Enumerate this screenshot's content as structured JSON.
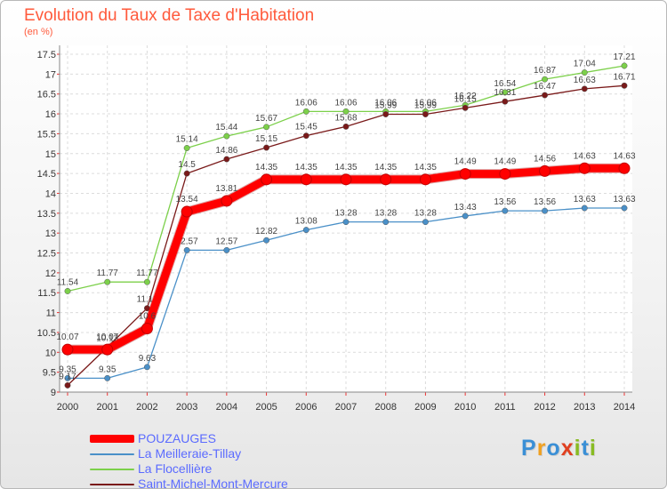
{
  "title": "Evolution du Taux de Taxe d'Habitation",
  "unit": "(en %)",
  "logo": {
    "text": "Proxiti",
    "colors": [
      "#3a8fd6",
      "#f0a020",
      "#e04020",
      "#88bb22"
    ]
  },
  "chart_data": {
    "type": "line",
    "title": "Evolution du Taux de Taxe d'Habitation",
    "ylabel": "(en %)",
    "xlabel": "",
    "x": [
      2000,
      2001,
      2002,
      2003,
      2004,
      2005,
      2006,
      2007,
      2008,
      2009,
      2010,
      2011,
      2012,
      2013,
      2014
    ],
    "ylim": [
      9,
      17.5
    ],
    "yticks": [
      "9",
      "9.5",
      "10",
      "10.5",
      "11",
      "11.5",
      "12",
      "12.5",
      "13",
      "13.5",
      "14",
      "14.5",
      "15",
      "15.5",
      "16",
      "16.5",
      "17",
      "17.5"
    ],
    "grid": true,
    "legend": "bottom-left",
    "series": [
      {
        "name": "La Meilleraie-Tillay",
        "color": "#4a90c8",
        "values": [
          9.35,
          9.35,
          9.63,
          12.57,
          12.57,
          12.82,
          13.08,
          13.28,
          13.28,
          13.28,
          13.43,
          13.56,
          13.56,
          13.63,
          13.63
        ],
        "labels": [
          "9.35",
          "9.35",
          "9.63",
          "12.57",
          "12.57",
          "12.82",
          "13.08",
          "13.28",
          "13.28",
          "13.28",
          "13.43",
          "13.56",
          "13.56",
          "13.63",
          "13.63"
        ]
      },
      {
        "name": "La Flocellière",
        "color": "#7cd04a",
        "values": [
          11.54,
          11.77,
          11.77,
          15.14,
          15.44,
          15.67,
          16.06,
          16.06,
          16.06,
          16.06,
          16.22,
          16.54,
          16.87,
          17.04,
          17.21
        ],
        "labels": [
          "11.54",
          "11.77",
          "11.77",
          "15.14",
          "15.44",
          "15.67",
          "16.06",
          "16.06",
          "16.06",
          "16.06",
          "16.22",
          "16.54",
          "16.87",
          "17.04",
          "17.21"
        ]
      },
      {
        "name": "Saint-Michel-Mont-Mercure",
        "color": "#7a1a1a",
        "values": [
          9.17,
          10.13,
          11.11,
          14.5,
          14.86,
          15.15,
          15.45,
          15.68,
          15.99,
          15.99,
          16.15,
          16.31,
          16.47,
          16.63,
          16.71
        ],
        "labels": [
          "9.17",
          "10.13",
          "11.11",
          "14.5",
          "14.86",
          "15.15",
          "15.45",
          "15.68",
          "15.99",
          "15.99",
          "16.15",
          "16.31",
          "16.47",
          "16.63",
          "16.71"
        ]
      },
      {
        "name": "POUZAUGES",
        "color": "#ff0000",
        "values": [
          10.07,
          10.07,
          10.6,
          13.54,
          13.81,
          14.35,
          14.35,
          14.35,
          14.35,
          14.35,
          14.49,
          14.49,
          14.56,
          14.63,
          14.63
        ],
        "labels": [
          "10.07",
          "10.07",
          "10.6",
          "13.54",
          "13.81",
          "14.35",
          "14.35",
          "14.35",
          "14.35",
          "14.35",
          "14.49",
          "14.49",
          "14.56",
          "14.63",
          "14.63"
        ]
      }
    ],
    "legend_entries": [
      {
        "name": "POUZAUGES",
        "color": "#ff0000"
      },
      {
        "name": "La Meilleraie-Tillay",
        "color": "#4a90c8"
      },
      {
        "name": "La Flocellière",
        "color": "#7cd04a"
      },
      {
        "name": "Saint-Michel-Mont-Mercure",
        "color": "#7a1a1a"
      }
    ]
  }
}
